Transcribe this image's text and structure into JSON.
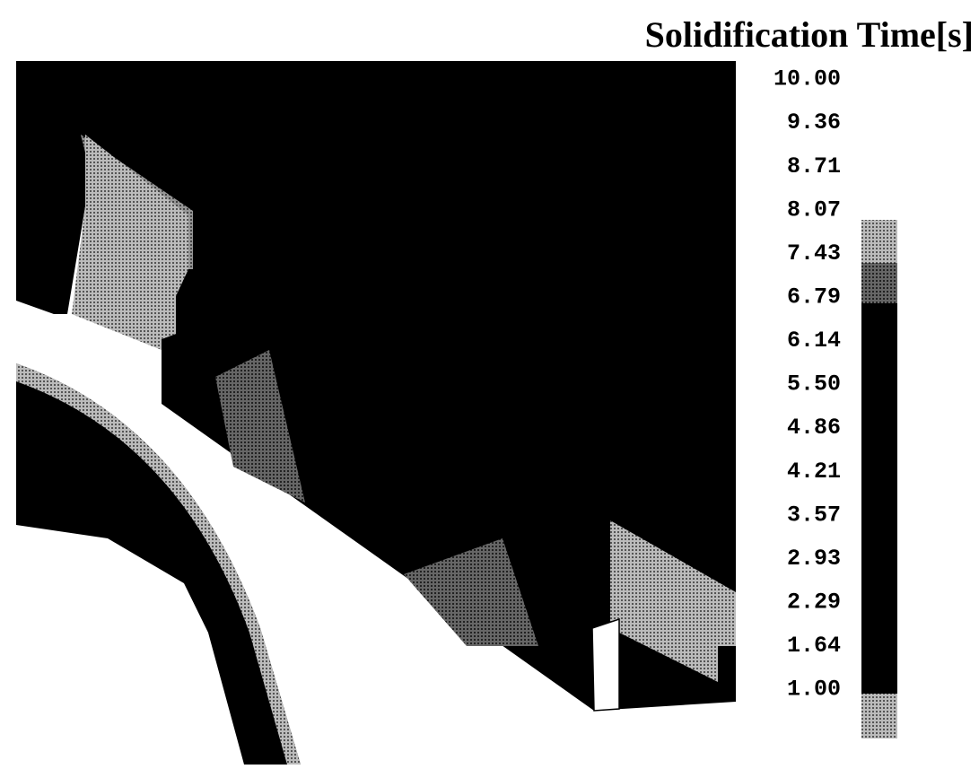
{
  "title": "Solidification Time[s]",
  "legend": {
    "labels": [
      "10.00",
      "9.36",
      "8.71",
      "8.07",
      "7.43",
      "6.79",
      "6.14",
      "5.50",
      "4.86",
      "4.21",
      "3.57",
      "2.93",
      "2.29",
      "1.64",
      "1.00"
    ]
  }
}
